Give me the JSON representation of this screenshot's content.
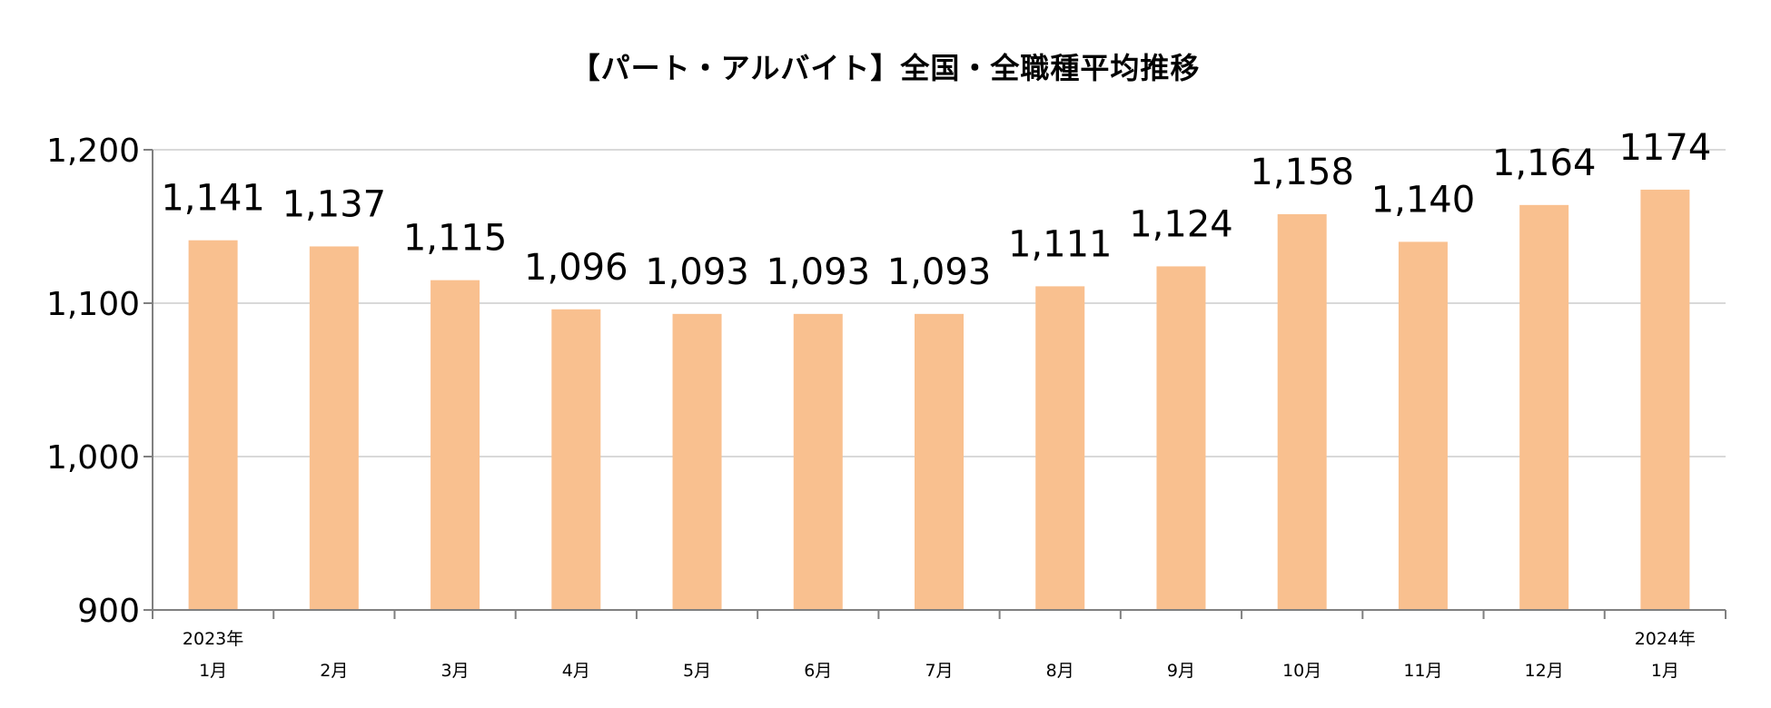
{
  "chart_data": {
    "type": "bar",
    "title": "【パート・アルバイト】全国・全職種平均推移",
    "xlabel": "",
    "ylabel": "",
    "categories": [
      {
        "year": "2023年",
        "month": "1月"
      },
      {
        "year": "",
        "month": "2月"
      },
      {
        "year": "",
        "month": "3月"
      },
      {
        "year": "",
        "month": "4月"
      },
      {
        "year": "",
        "month": "5月"
      },
      {
        "year": "",
        "month": "6月"
      },
      {
        "year": "",
        "month": "7月"
      },
      {
        "year": "",
        "month": "8月"
      },
      {
        "year": "",
        "month": "9月"
      },
      {
        "year": "",
        "month": "10月"
      },
      {
        "year": "",
        "month": "11月"
      },
      {
        "year": "",
        "month": "12月"
      },
      {
        "year": "2024年",
        "month": "1月"
      }
    ],
    "values": [
      1141,
      1137,
      1115,
      1096,
      1093,
      1093,
      1093,
      1111,
      1124,
      1158,
      1140,
      1164,
      1174
    ],
    "value_labels": [
      "1,141",
      "1,137",
      "1,115",
      "1,096",
      "1,093",
      "1,093",
      "1,093",
      "1,111",
      "1,124",
      "1,158",
      "1,140",
      "1,164",
      "1174"
    ],
    "ylim": [
      900,
      1200
    ],
    "y_ticks": [
      900,
      1000,
      1100,
      1200
    ],
    "y_tick_labels": [
      "900",
      "1,000",
      "1,100",
      "1,200"
    ],
    "grid": true,
    "legend": "none",
    "colors": {
      "bar": "#F9C08F",
      "grid": "#D9D9D9",
      "axis": "#808080"
    }
  }
}
